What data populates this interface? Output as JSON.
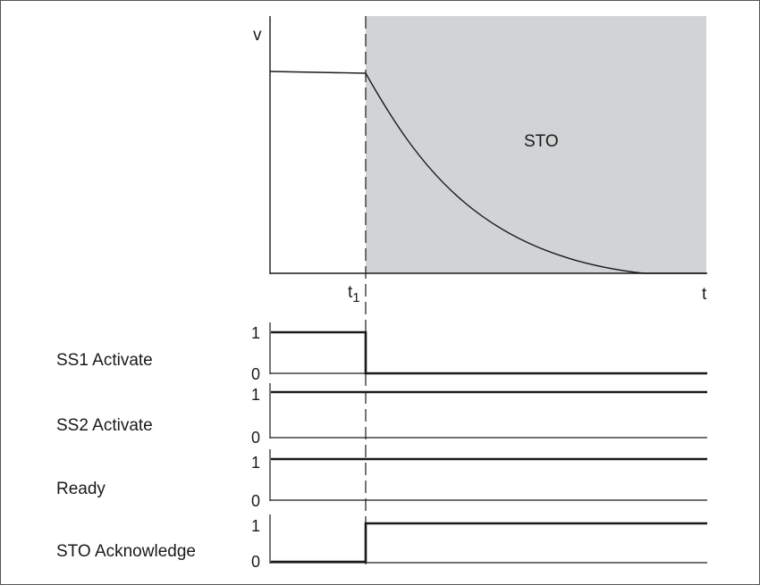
{
  "chart": {
    "y_axis_label": "v",
    "x_axis_label": "t",
    "t1_base": "t",
    "t1_sub": "1",
    "region_label": "STO"
  },
  "signals": [
    {
      "name": "SS1 Activate",
      "high": "1",
      "low": "0",
      "levels": [
        1,
        0
      ]
    },
    {
      "name": "SS2 Activate",
      "high": "1",
      "low": "0",
      "levels": [
        1,
        1
      ]
    },
    {
      "name": "Ready",
      "high": "1",
      "low": "0",
      "levels": [
        1,
        1
      ]
    },
    {
      "name": "STO Acknowledge",
      "high": "1",
      "low": "0",
      "levels": [
        0,
        1
      ]
    }
  ],
  "colors": {
    "sto_region": "#d2d3d5",
    "line": "#1a1a1a",
    "frame": "#555555"
  }
}
